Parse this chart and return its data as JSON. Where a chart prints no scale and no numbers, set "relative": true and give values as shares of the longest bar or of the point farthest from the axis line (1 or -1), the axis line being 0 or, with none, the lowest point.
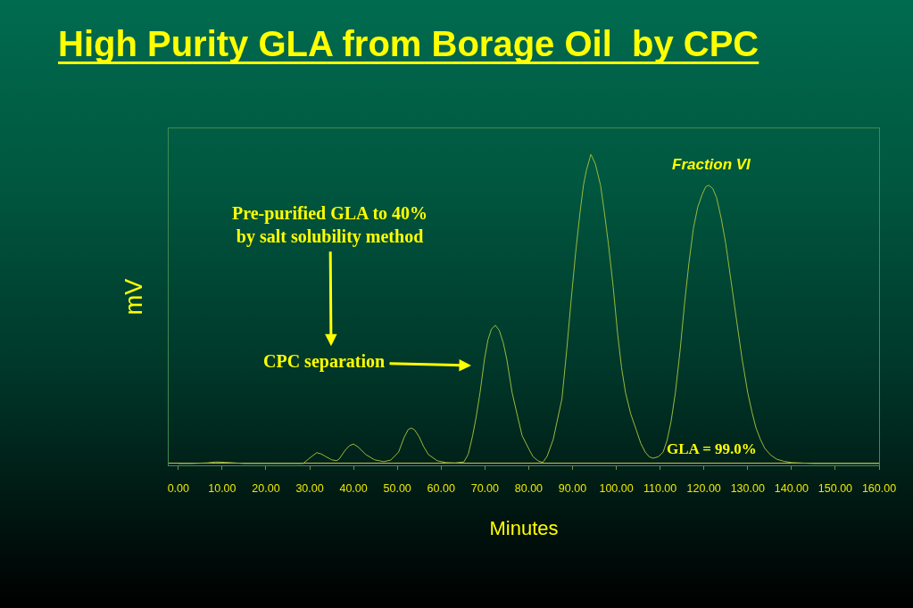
{
  "chart_data": {
    "type": "line",
    "title": "High Purity GLA from Borage Oil  by CPC",
    "xlabel": "Minutes",
    "ylabel": "mV",
    "relative": true,
    "color": "#9ab83c",
    "xlim": [
      -2.2,
      160
    ],
    "xticks": [
      {
        "value": 0,
        "label": "0.00"
      },
      {
        "value": 10,
        "label": "10.00"
      },
      {
        "value": 20,
        "label": "20.00"
      },
      {
        "value": 30,
        "label": "30.00"
      },
      {
        "value": 40,
        "label": "40.00"
      },
      {
        "value": 50,
        "label": "50.00"
      },
      {
        "value": 60,
        "label": "60.00"
      },
      {
        "value": 70,
        "label": "70.00"
      },
      {
        "value": 80,
        "label": "80.00"
      },
      {
        "value": 90,
        "label": "90.00"
      },
      {
        "value": 100,
        "label": "100.00"
      },
      {
        "value": 110,
        "label": "110.00"
      },
      {
        "value": 120,
        "label": "120.00"
      },
      {
        "value": 130,
        "label": "130.00"
      },
      {
        "value": 140,
        "label": "140.00"
      },
      {
        "value": 150,
        "label": "150.00"
      },
      {
        "value": 160,
        "label": "160.00"
      }
    ],
    "x": [
      0,
      3,
      6.7,
      8.5,
      10.5,
      12.8,
      15,
      20,
      25,
      28.5,
      30.2,
      31.6,
      32.6,
      33.6,
      35.0,
      36.1,
      36.7,
      38.1,
      39.1,
      40.0,
      41.0,
      42.8,
      44.8,
      46.9,
      48.5,
      50.3,
      51.6,
      52.5,
      53.2,
      54.0,
      55.0,
      56.0,
      57.1,
      59.1,
      61.1,
      63.2,
      65.2,
      66.2,
      67.2,
      68.0,
      68.9,
      69.9,
      70.7,
      71.5,
      72.4,
      73.3,
      74.2,
      75.0,
      76.2,
      77.5,
      78.5,
      80.1,
      81.0,
      82.1,
      83.2,
      84.2,
      85.6,
      87.6,
      88.7,
      89.7,
      90.7,
      91.7,
      92.5,
      93.2,
      94.2,
      95.2,
      96.4,
      97.3,
      98.2,
      99.3,
      100.3,
      101.2,
      102.1,
      103.3,
      104.6,
      105.6,
      106.6,
      107.5,
      108.4,
      109.6,
      110.7,
      111.6,
      112.5,
      113.5,
      114.6,
      115.6,
      116.6,
      117.6,
      118.6,
      119.6,
      120.4,
      121.1,
      122.0,
      122.9,
      124.0,
      125.0,
      126.2,
      127.4,
      128.7,
      130.0,
      131.0,
      131.9,
      132.9,
      133.9,
      135.2,
      136.6,
      138.3,
      140,
      145,
      150,
      155,
      160
    ],
    "values": [
      0,
      0,
      0.002,
      0.005,
      0.004,
      0.002,
      0,
      0,
      0,
      0,
      0.02,
      0.035,
      0.031,
      0.023,
      0.012,
      0.009,
      0.014,
      0.043,
      0.058,
      0.063,
      0.054,
      0.029,
      0.012,
      0.006,
      0.011,
      0.037,
      0.086,
      0.11,
      0.115,
      0.108,
      0.086,
      0.055,
      0.029,
      0.009,
      0.003,
      0.002,
      0.005,
      0.03,
      0.09,
      0.15,
      0.23,
      0.337,
      0.4,
      0.435,
      0.447,
      0.43,
      0.39,
      0.337,
      0.23,
      0.15,
      0.09,
      0.045,
      0.022,
      0.009,
      0.003,
      0.023,
      0.078,
      0.21,
      0.37,
      0.53,
      0.68,
      0.81,
      0.9,
      0.95,
      1,
      0.97,
      0.9,
      0.81,
      0.71,
      0.57,
      0.42,
      0.31,
      0.23,
      0.16,
      0.107,
      0.065,
      0.037,
      0.022,
      0.017,
      0.022,
      0.037,
      0.075,
      0.135,
      0.23,
      0.37,
      0.52,
      0.65,
      0.76,
      0.83,
      0.87,
      0.895,
      0.9,
      0.89,
      0.86,
      0.79,
      0.71,
      0.59,
      0.47,
      0.34,
      0.23,
      0.165,
      0.115,
      0.078,
      0.049,
      0.028,
      0.014,
      0.007,
      0.003,
      0,
      0,
      0,
      0
    ],
    "annotations": [
      "Pre-purified GLA to 40%\nby salt solubility method",
      "CPC separation",
      {
        "text": "Fraction VI",
        "x": 121.1,
        "y": 0.9
      },
      "GLA = 99.0%"
    ]
  }
}
